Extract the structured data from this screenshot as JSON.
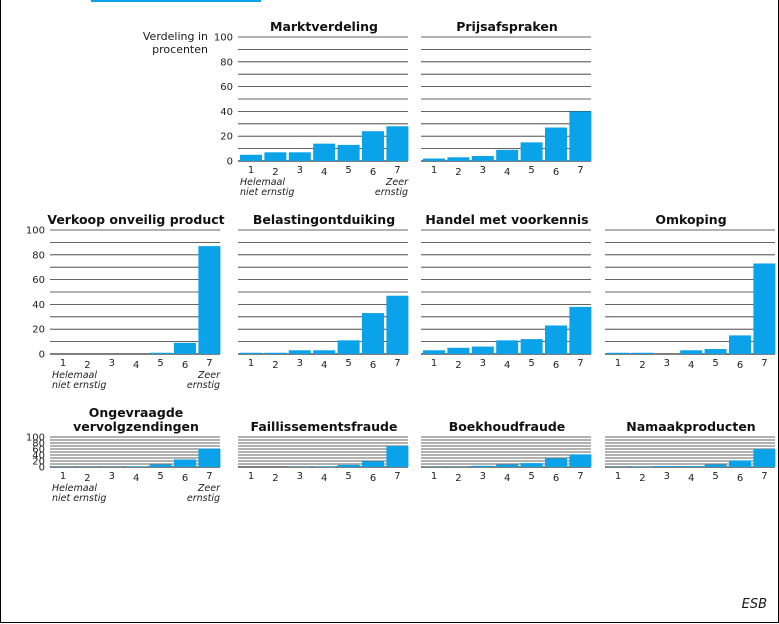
{
  "axis_label": "Verdeling in procenten",
  "source": "ESB",
  "colors": {
    "bar": "#0aa2e8",
    "grid": "#333333",
    "title_strip": "#0aa2e8"
  },
  "chart_data": [
    {
      "type": "bar",
      "title": "Marktverdeling",
      "categories": [
        "1",
        "2",
        "3",
        "4",
        "5",
        "6",
        "7"
      ],
      "values": [
        5,
        7,
        7,
        14,
        13,
        24,
        28
      ],
      "ylim": [
        0,
        100
      ],
      "yticks": [
        0,
        20,
        40,
        60,
        80,
        100
      ],
      "show_yticks": true,
      "end_labels": {
        "left": "Helemaal niet ernstig",
        "right": "Zeer ernstig"
      }
    },
    {
      "type": "bar",
      "title": "Prijsafspraken",
      "categories": [
        "1",
        "2",
        "3",
        "4",
        "5",
        "6",
        "7"
      ],
      "values": [
        2,
        3,
        4,
        9,
        15,
        27,
        40
      ],
      "ylim": [
        0,
        100
      ],
      "show_yticks": false
    },
    {
      "type": "bar",
      "title": "Verkoop onveilig product",
      "categories": [
        "1",
        "2",
        "3",
        "4",
        "5",
        "6",
        "7"
      ],
      "values": [
        0,
        0,
        0,
        0,
        1,
        9,
        87
      ],
      "ylim": [
        0,
        100
      ],
      "yticks": [
        0,
        20,
        40,
        60,
        80,
        100
      ],
      "show_yticks": true,
      "end_labels": {
        "left": "Helemaal niet ernstig",
        "right": "Zeer ernstig"
      }
    },
    {
      "type": "bar",
      "title": "Belastingontduiking",
      "categories": [
        "1",
        "2",
        "3",
        "4",
        "5",
        "6",
        "7"
      ],
      "values": [
        1,
        1,
        3,
        3,
        11,
        33,
        47
      ],
      "ylim": [
        0,
        100
      ],
      "show_yticks": false
    },
    {
      "type": "bar",
      "title": "Handel met voorkennis",
      "categories": [
        "1",
        "2",
        "3",
        "4",
        "5",
        "6",
        "7"
      ],
      "values": [
        3,
        5,
        6,
        11,
        12,
        23,
        38
      ],
      "ylim": [
        0,
        100
      ],
      "show_yticks": false
    },
    {
      "type": "bar",
      "title": "Omkoping",
      "categories": [
        "1",
        "2",
        "3",
        "4",
        "5",
        "6",
        "7"
      ],
      "values": [
        1,
        1,
        0,
        3,
        4,
        15,
        73
      ],
      "ylim": [
        0,
        100
      ],
      "show_yticks": false
    },
    {
      "type": "bar",
      "title": "Ongevraagde vervolgzendingen",
      "categories": [
        "1",
        "2",
        "3",
        "4",
        "5",
        "6",
        "7"
      ],
      "values": [
        1,
        1,
        1,
        2,
        8,
        25,
        61
      ],
      "ylim": [
        0,
        100
      ],
      "yticks": [
        0,
        20,
        40,
        60,
        80,
        100
      ],
      "show_yticks": true,
      "end_labels": {
        "left": "Helemaal niet ernstig",
        "right": "Zeer ernstig"
      }
    },
    {
      "type": "bar",
      "title": "Faillissementsfraude",
      "categories": [
        "1",
        "2",
        "3",
        "4",
        "5",
        "6",
        "7"
      ],
      "values": [
        0,
        0,
        1,
        2,
        7,
        19,
        70
      ],
      "ylim": [
        0,
        100
      ],
      "show_yticks": false
    },
    {
      "type": "bar",
      "title": "Boekhoudfraude",
      "categories": [
        "1",
        "2",
        "3",
        "4",
        "5",
        "6",
        "7"
      ],
      "values": [
        1,
        1,
        4,
        8,
        13,
        29,
        42
      ],
      "ylim": [
        0,
        100
      ],
      "show_yticks": false
    },
    {
      "type": "bar",
      "title": "Namaakproducten",
      "categories": [
        "1",
        "2",
        "3",
        "4",
        "5",
        "6",
        "7"
      ],
      "values": [
        1,
        2,
        3,
        3,
        8,
        22,
        60
      ],
      "ylim": [
        0,
        100
      ],
      "show_yticks": false
    }
  ]
}
